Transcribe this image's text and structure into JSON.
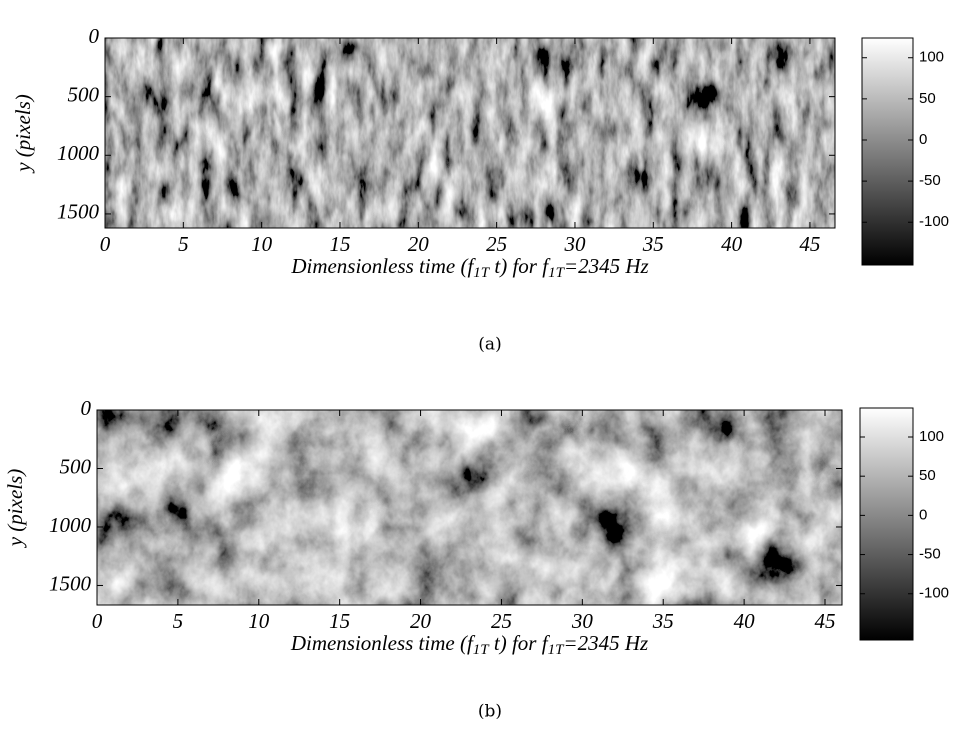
{
  "chart_data": [
    {
      "type": "heatmap",
      "caption": "(a)",
      "ylabel": "y (pixels)",
      "xlabel_parts": [
        "Dimensionless time (f",
        "1T",
        " t) for f",
        "1T",
        "=2345 Hz"
      ],
      "xlim": [
        0,
        46.6
      ],
      "xticks": [
        0,
        5,
        10,
        15,
        20,
        25,
        30,
        35,
        40,
        45
      ],
      "ylim": [
        0,
        1620
      ],
      "yticks": [
        0,
        500,
        1000,
        1500
      ],
      "y_reversed": true,
      "colorbar_lim": [
        -152,
        124
      ],
      "colorbar_ticks": [
        -100,
        -50,
        0,
        50,
        100
      ]
    },
    {
      "type": "heatmap",
      "caption": "(b)",
      "ylabel": "y (pixels)",
      "xlabel_parts": [
        "Dimensionless time (f",
        "1T",
        " t) for f",
        "1T",
        "=2345 Hz"
      ],
      "xlim": [
        0,
        46.05
      ],
      "xticks": [
        0,
        5,
        10,
        15,
        20,
        25,
        30,
        35,
        40,
        45
      ],
      "ylim": [
        0,
        1667
      ],
      "yticks": [
        0,
        500,
        1000,
        1500
      ],
      "y_reversed": true,
      "colorbar_lim": [
        -159,
        137
      ],
      "colorbar_ticks": [
        -100,
        -50,
        0,
        50,
        100
      ]
    }
  ]
}
